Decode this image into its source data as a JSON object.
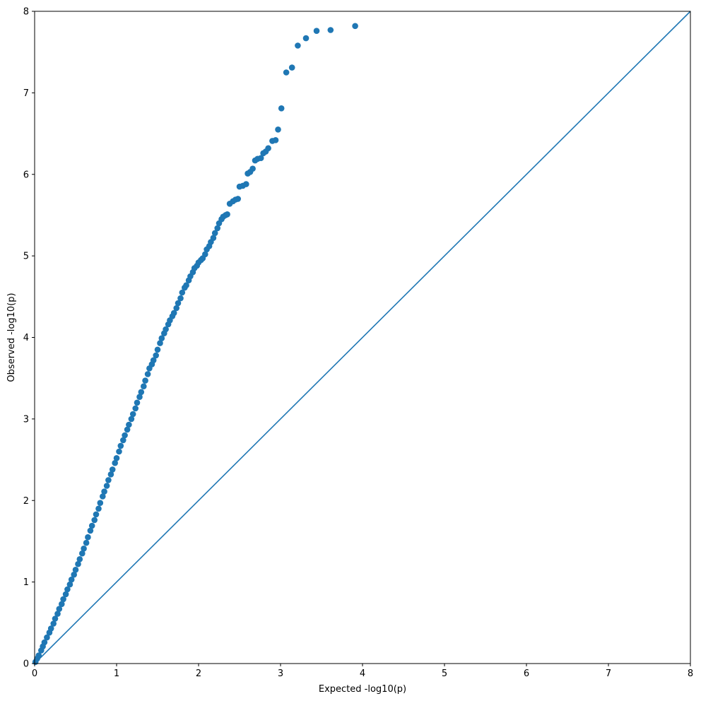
{
  "chart_data": {
    "type": "scatter",
    "title": "",
    "xlabel": "Expected -log10(p)",
    "ylabel": "Observed -log10(p)",
    "xlim": [
      0,
      8
    ],
    "ylim": [
      0,
      8
    ],
    "xticks": [
      "0",
      "1",
      "2",
      "3",
      "4",
      "5",
      "6",
      "7",
      "8"
    ],
    "yticks": [
      "0",
      "1",
      "2",
      "3",
      "4",
      "5",
      "6",
      "7",
      "8"
    ],
    "grid": false,
    "legend": "none",
    "color": "#1f77b4",
    "reference_line": {
      "type": "line",
      "x": [
        0,
        8
      ],
      "y": [
        0,
        8
      ]
    },
    "series": [
      {
        "values": [
          [
            0.01,
            0.02
          ],
          [
            0.03,
            0.06
          ],
          [
            0.05,
            0.1
          ],
          [
            0.08,
            0.16
          ],
          [
            0.1,
            0.21
          ],
          [
            0.12,
            0.26
          ],
          [
            0.15,
            0.32
          ],
          [
            0.18,
            0.38
          ],
          [
            0.2,
            0.43
          ],
          [
            0.23,
            0.49
          ],
          [
            0.25,
            0.55
          ],
          [
            0.28,
            0.61
          ],
          [
            0.3,
            0.67
          ],
          [
            0.33,
            0.73
          ],
          [
            0.35,
            0.79
          ],
          [
            0.38,
            0.85
          ],
          [
            0.4,
            0.91
          ],
          [
            0.43,
            0.97
          ],
          [
            0.45,
            1.03
          ],
          [
            0.48,
            1.09
          ],
          [
            0.5,
            1.15
          ],
          [
            0.53,
            1.22
          ],
          [
            0.55,
            1.28
          ],
          [
            0.58,
            1.35
          ],
          [
            0.6,
            1.41
          ],
          [
            0.63,
            1.48
          ],
          [
            0.65,
            1.55
          ],
          [
            0.68,
            1.63
          ],
          [
            0.7,
            1.69
          ],
          [
            0.73,
            1.76
          ],
          [
            0.75,
            1.83
          ],
          [
            0.78,
            1.9
          ],
          [
            0.8,
            1.97
          ],
          [
            0.83,
            2.05
          ],
          [
            0.85,
            2.11
          ],
          [
            0.88,
            2.18
          ],
          [
            0.9,
            2.25
          ],
          [
            0.93,
            2.32
          ],
          [
            0.95,
            2.38
          ],
          [
            0.98,
            2.46
          ],
          [
            1.0,
            2.52
          ],
          [
            1.03,
            2.6
          ],
          [
            1.05,
            2.67
          ],
          [
            1.08,
            2.74
          ],
          [
            1.1,
            2.8
          ],
          [
            1.13,
            2.87
          ],
          [
            1.15,
            2.93
          ],
          [
            1.18,
            3.0
          ],
          [
            1.2,
            3.06
          ],
          [
            1.23,
            3.13
          ],
          [
            1.25,
            3.2
          ],
          [
            1.28,
            3.27
          ],
          [
            1.3,
            3.33
          ],
          [
            1.33,
            3.4
          ],
          [
            1.35,
            3.47
          ],
          [
            1.38,
            3.55
          ],
          [
            1.4,
            3.62
          ],
          [
            1.43,
            3.67
          ],
          [
            1.45,
            3.72
          ],
          [
            1.48,
            3.78
          ],
          [
            1.5,
            3.85
          ],
          [
            1.53,
            3.93
          ],
          [
            1.55,
            3.99
          ],
          [
            1.58,
            4.05
          ],
          [
            1.6,
            4.1
          ],
          [
            1.63,
            4.16
          ],
          [
            1.65,
            4.21
          ],
          [
            1.68,
            4.26
          ],
          [
            1.7,
            4.3
          ],
          [
            1.73,
            4.36
          ],
          [
            1.75,
            4.42
          ],
          [
            1.78,
            4.48
          ],
          [
            1.8,
            4.55
          ],
          [
            1.83,
            4.61
          ],
          [
            1.85,
            4.64
          ],
          [
            1.88,
            4.7
          ],
          [
            1.9,
            4.75
          ],
          [
            1.93,
            4.8
          ],
          [
            1.95,
            4.85
          ],
          [
            1.98,
            4.88
          ],
          [
            2.0,
            4.92
          ],
          [
            2.03,
            4.95
          ],
          [
            2.05,
            4.97
          ],
          [
            2.08,
            5.02
          ],
          [
            2.1,
            5.08
          ],
          [
            2.13,
            5.12
          ],
          [
            2.15,
            5.17
          ],
          [
            2.18,
            5.22
          ],
          [
            2.2,
            5.28
          ],
          [
            2.23,
            5.34
          ],
          [
            2.25,
            5.4
          ],
          [
            2.28,
            5.45
          ],
          [
            2.3,
            5.48
          ],
          [
            2.33,
            5.5
          ],
          [
            2.35,
            5.51
          ],
          [
            2.38,
            5.64
          ],
          [
            2.42,
            5.67
          ],
          [
            2.45,
            5.69
          ],
          [
            2.48,
            5.7
          ],
          [
            2.5,
            5.85
          ],
          [
            2.54,
            5.86
          ],
          [
            2.58,
            5.88
          ],
          [
            2.6,
            6.01
          ],
          [
            2.63,
            6.03
          ],
          [
            2.66,
            6.07
          ],
          [
            2.69,
            6.17
          ],
          [
            2.72,
            6.19
          ],
          [
            2.76,
            6.2
          ],
          [
            2.79,
            6.26
          ],
          [
            2.82,
            6.28
          ],
          [
            2.85,
            6.32
          ],
          [
            2.9,
            6.41
          ],
          [
            2.94,
            6.42
          ],
          [
            2.97,
            6.55
          ],
          [
            3.01,
            6.81
          ],
          [
            3.07,
            7.25
          ],
          [
            3.14,
            7.31
          ],
          [
            3.21,
            7.58
          ],
          [
            3.31,
            7.67
          ],
          [
            3.44,
            7.76
          ],
          [
            3.61,
            7.77
          ],
          [
            3.91,
            7.82
          ]
        ]
      }
    ]
  }
}
